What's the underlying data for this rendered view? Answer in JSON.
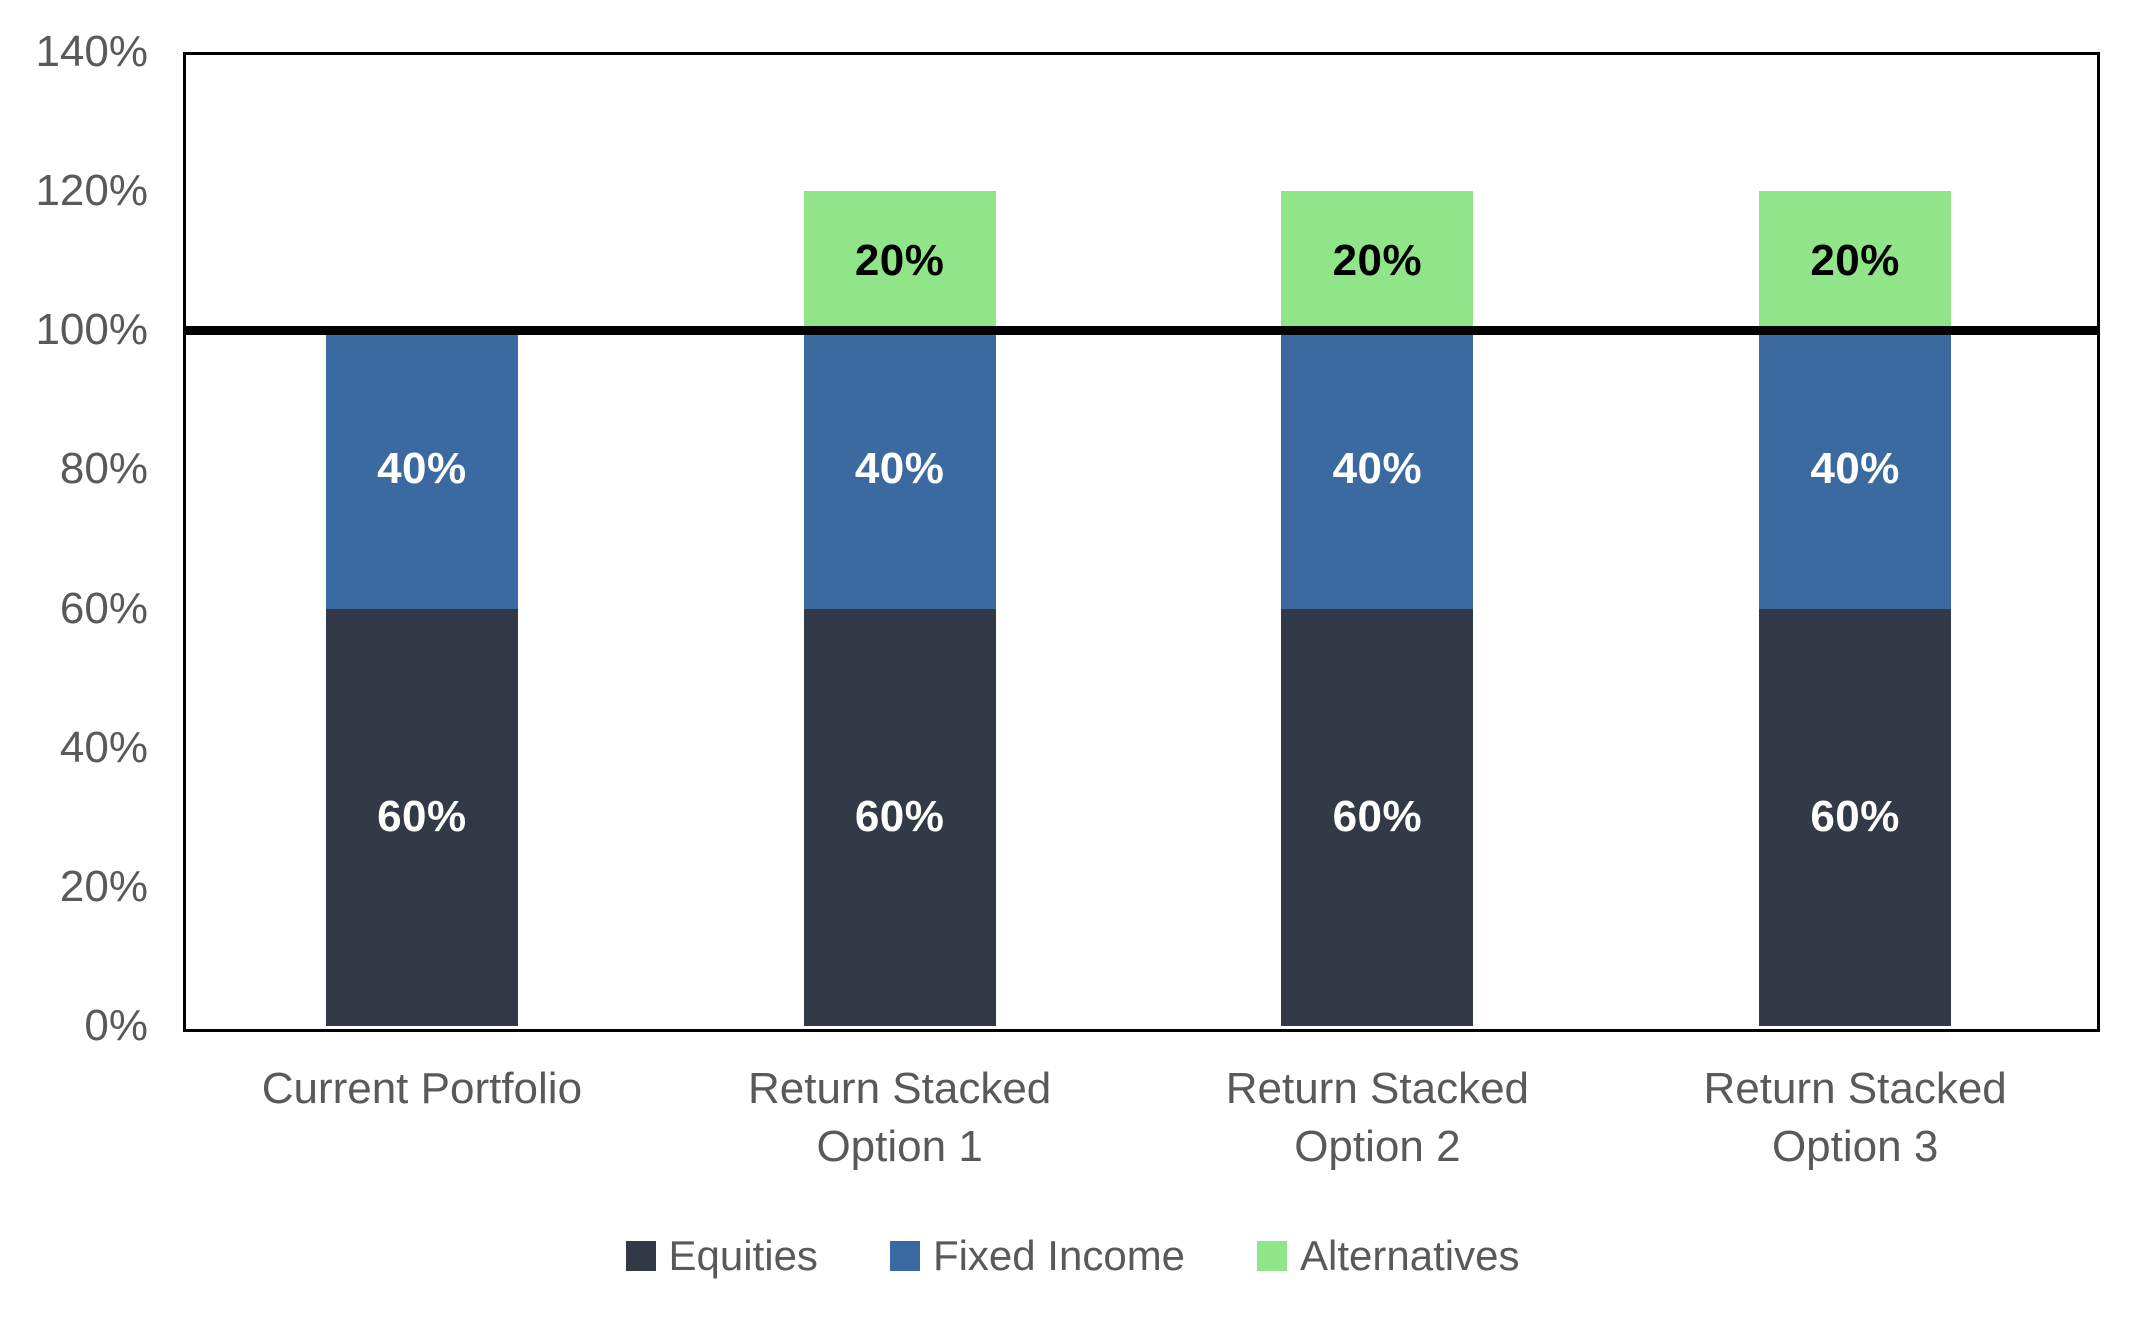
{
  "chart_data": {
    "type": "bar",
    "variant": "stacked-column",
    "title": "",
    "categories": [
      "Current Portfolio",
      "Return Stacked\nOption 1",
      "Return Stacked\nOption 2",
      "Return Stacked\nOption 3"
    ],
    "series": [
      {
        "name": "Equities",
        "color": "#333A47",
        "label_color": "#FFFFFF",
        "values": [
          60,
          60,
          60,
          60
        ]
      },
      {
        "name": "Fixed Income",
        "color": "#3A6A9F",
        "label_color": "#FFFFFF",
        "values": [
          40,
          40,
          40,
          40
        ]
      },
      {
        "name": "Alternatives",
        "color": "#90E589",
        "label_color": "#000000",
        "values": [
          0,
          20,
          20,
          20
        ]
      }
    ],
    "data_label_suffix": "%",
    "ylim": [
      0,
      140
    ],
    "yticks": [
      {
        "value": 0,
        "label": "0%"
      },
      {
        "value": 20,
        "label": "20%"
      },
      {
        "value": 40,
        "label": "40%"
      },
      {
        "value": 60,
        "label": "60%"
      },
      {
        "value": 80,
        "label": "80%"
      },
      {
        "value": 100,
        "label": "100%"
      },
      {
        "value": 120,
        "label": "120%"
      },
      {
        "value": 140,
        "label": "140%"
      }
    ],
    "reference_line": {
      "value": 100,
      "color": "#000000"
    },
    "grid": false,
    "legend_position": "bottom",
    "axis_text_color": "#595959",
    "plot_border_color": "#000000"
  }
}
